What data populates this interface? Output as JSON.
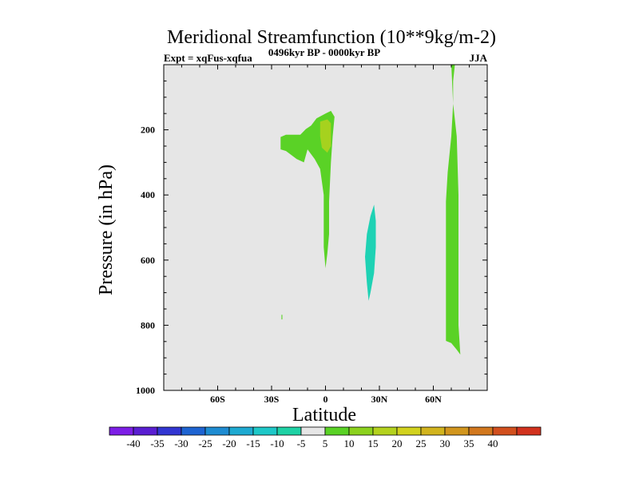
{
  "chart_data": {
    "type": "contour",
    "title": "Meridional Streamfunction (10**9kg/m-2)",
    "subtitle_left": "Expt = xqFus-xqfua",
    "subtitle_center": "0496kyr BP - 0000kyr BP",
    "subtitle_right": "JJA",
    "xlabel": "Latitude",
    "ylabel": "Pressure (in hPa)",
    "xlim": [
      -90,
      90
    ],
    "ylim": [
      1000,
      0
    ],
    "xticks": [
      {
        "value": -60,
        "label": "60S"
      },
      {
        "value": -30,
        "label": "30S"
      },
      {
        "value": 0,
        "label": "0"
      },
      {
        "value": 30,
        "label": "30N"
      },
      {
        "value": 60,
        "label": "60N"
      }
    ],
    "yticks": [
      {
        "value": 200,
        "label": "200"
      },
      {
        "value": 400,
        "label": "400"
      },
      {
        "value": 600,
        "label": "600"
      },
      {
        "value": 800,
        "label": "800"
      },
      {
        "value": 1000,
        "label": "1000"
      }
    ],
    "background_color": "#e6e6e6",
    "regions": [
      {
        "level": "5 to 10",
        "color": "#5ad226",
        "points": [
          [
            -25,
            222
          ],
          [
            -22,
            215
          ],
          [
            -14,
            215
          ],
          [
            -11,
            198
          ],
          [
            -8,
            187
          ],
          [
            -5,
            165
          ],
          [
            0,
            150
          ],
          [
            3,
            142
          ],
          [
            5,
            160
          ],
          [
            4,
            220
          ],
          [
            3,
            300
          ],
          [
            2,
            420
          ],
          [
            2,
            520
          ],
          [
            1,
            580
          ],
          [
            0,
            625
          ],
          [
            -1,
            560
          ],
          [
            -1,
            400
          ],
          [
            -3,
            320
          ],
          [
            -6,
            290
          ],
          [
            -10,
            260
          ],
          [
            -12,
            300
          ],
          [
            -16,
            290
          ],
          [
            -22,
            265
          ],
          [
            -25,
            260
          ]
        ]
      },
      {
        "level": "10 to 15",
        "color": "#a6d21e",
        "points": [
          [
            -3,
            175
          ],
          [
            1,
            168
          ],
          [
            3,
            180
          ],
          [
            3,
            250
          ],
          [
            1,
            270
          ],
          [
            -2,
            255
          ],
          [
            -3,
            220
          ]
        ]
      },
      {
        "level": "-10 to -5",
        "color": "#1ed2b4",
        "points": [
          [
            25,
            465
          ],
          [
            27,
            430
          ],
          [
            28,
            480
          ],
          [
            28,
            560
          ],
          [
            27,
            640
          ],
          [
            25,
            700
          ],
          [
            24,
            725
          ],
          [
            23,
            670
          ],
          [
            22,
            590
          ],
          [
            23,
            520
          ]
        ]
      },
      {
        "level": "5 to 10",
        "color": "#5ad226",
        "points": [
          [
            70,
            0
          ],
          [
            72,
            0
          ],
          [
            71,
            50
          ],
          [
            71,
            120
          ],
          [
            73,
            220
          ],
          [
            74,
            400
          ],
          [
            74,
            600
          ],
          [
            74,
            800
          ],
          [
            75,
            890
          ],
          [
            73,
            875
          ],
          [
            70,
            855
          ],
          [
            67,
            848
          ],
          [
            67,
            600
          ],
          [
            67,
            420
          ],
          [
            68,
            330
          ],
          [
            70,
            220
          ],
          [
            71,
            120
          ]
        ]
      },
      {
        "level": "5 to 10",
        "color": "#5ad226",
        "points": [
          [
            -24.5,
            768
          ],
          [
            -24,
            768
          ],
          [
            -24,
            782
          ],
          [
            -24.5,
            782
          ]
        ]
      }
    ],
    "colorbar": {
      "colors": [
        "#7d1ee6",
        "#5a1ed2",
        "#3236d2",
        "#1e64d2",
        "#1e8cd2",
        "#1eaad2",
        "#1ec8c8",
        "#1ed2a5",
        "#e6e6e6",
        "#5ad226",
        "#8cd21e",
        "#b4d21e",
        "#d2d21e",
        "#d2b41e",
        "#d2961e",
        "#d2781e",
        "#d2501e",
        "#d2321e"
      ],
      "labels": [
        "-40",
        "-35",
        "-30",
        "-25",
        "-20",
        "-15",
        "-10",
        "-5",
        "5",
        "10",
        "15",
        "20",
        "25",
        "30",
        "35",
        "40"
      ]
    }
  }
}
